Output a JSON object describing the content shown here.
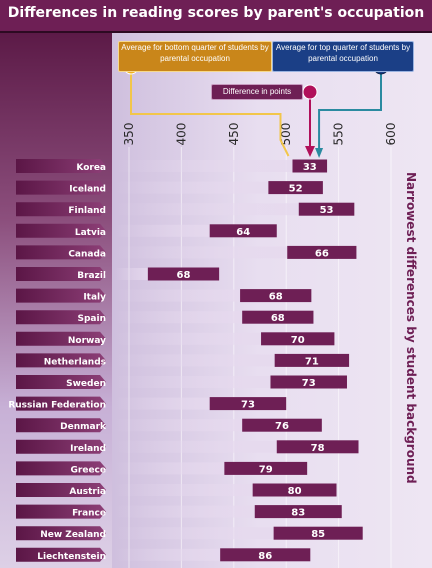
{
  "title": "Differences in reading scores by parent's occupation",
  "legend": {
    "bottom_label": "Average for bottom quarter of students by parental occupation",
    "top_label": "Average for top quarter of students by parental occupation",
    "diff_label": "Difference in points"
  },
  "side_label": "Narrowest differences by student background",
  "colors": {
    "title_bg": "#6e1f55",
    "bar": "#6e1f55",
    "bar_fade": "#e6d9ee",
    "bottom_marker": "#f0b020",
    "top_marker": "#1b3f86",
    "diff_marker": "#b0105a"
  },
  "chart_data": {
    "type": "bar",
    "subtype": "range",
    "x_ticks": [
      350,
      400,
      450,
      500,
      550,
      600
    ],
    "xlim": [
      350,
      600
    ],
    "axis_position": "top",
    "rows": [
      {
        "country": "Korea",
        "low": 506,
        "high": 539,
        "diff": 33
      },
      {
        "country": "Iceland",
        "low": 483,
        "high": 535,
        "diff": 52
      },
      {
        "country": "Finland",
        "low": 512,
        "high": 565,
        "diff": 53
      },
      {
        "country": "Latvia",
        "low": 427,
        "high": 491,
        "diff": 64
      },
      {
        "country": "Canada",
        "low": 501,
        "high": 567,
        "diff": 66
      },
      {
        "country": "Brazil",
        "low": 368,
        "high": 436,
        "diff": 68
      },
      {
        "country": "Italy",
        "low": 456,
        "high": 524,
        "diff": 68
      },
      {
        "country": "Spain",
        "low": 458,
        "high": 526,
        "diff": 68
      },
      {
        "country": "Norway",
        "low": 476,
        "high": 546,
        "diff": 70
      },
      {
        "country": "Netherlands",
        "low": 489,
        "high": 560,
        "diff": 71
      },
      {
        "country": "Sweden",
        "low": 485,
        "high": 558,
        "diff": 73
      },
      {
        "country": "Russian Federation",
        "low": 427,
        "high": 500,
        "diff": 73
      },
      {
        "country": "Denmark",
        "low": 458,
        "high": 534,
        "diff": 76
      },
      {
        "country": "Ireland",
        "low": 491,
        "high": 569,
        "diff": 78
      },
      {
        "country": "Greece",
        "low": 441,
        "high": 520,
        "diff": 79
      },
      {
        "country": "Austria",
        "low": 468,
        "high": 548,
        "diff": 80
      },
      {
        "country": "France",
        "low": 470,
        "high": 553,
        "diff": 83
      },
      {
        "country": "New Zealand",
        "low": 488,
        "high": 573,
        "diff": 85
      },
      {
        "country": "Liechtenstein",
        "low": 437,
        "high": 523,
        "diff": 86
      }
    ]
  }
}
